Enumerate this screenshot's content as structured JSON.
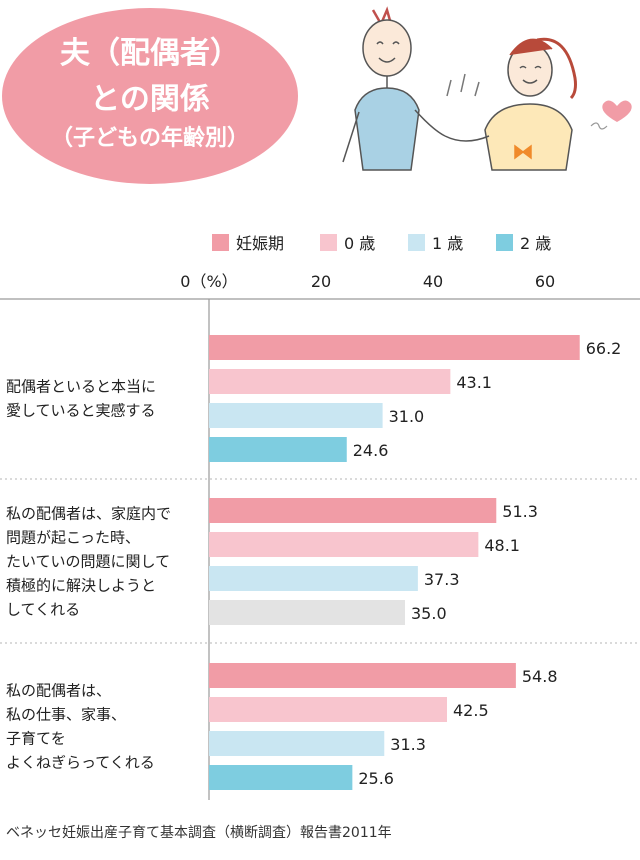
{
  "header": {
    "title_line1": "夫（配偶者）",
    "title_line2": "との関係",
    "title_line3": "（子どもの年齢別）"
  },
  "chart_data": {
    "type": "bar",
    "orientation": "horizontal",
    "axis_labels": [
      "0（%）",
      "20",
      "40",
      "60"
    ],
    "xlim": [
      0,
      70
    ],
    "ticks": [
      0,
      20,
      40,
      60
    ],
    "legend_position": "top",
    "grid": false,
    "series": [
      {
        "name": "妊娠期",
        "color": "#f19ca6",
        "values": [
          66.2,
          51.3,
          54.8
        ]
      },
      {
        "name": "0 歳",
        "color": "#f8c5ce",
        "values": [
          43.1,
          48.1,
          42.5
        ]
      },
      {
        "name": "1 歳",
        "color": "#c9e6f2",
        "values": [
          31.0,
          37.3,
          31.3
        ]
      },
      {
        "name": "2 歳",
        "color": "#7ecde0",
        "values": [
          24.6,
          35.0,
          25.6
        ]
      }
    ],
    "value_labels": [
      [
        "66.2",
        "43.1",
        "31.0",
        "24.6"
      ],
      [
        "51.3",
        "48.1",
        "37.3",
        "35.0"
      ],
      [
        "54.8",
        "42.5",
        "31.3",
        "25.6"
      ]
    ],
    "override_colors": [
      [
        null,
        null,
        null,
        null
      ],
      [
        null,
        null,
        null,
        "#e3e3e3"
      ],
      [
        null,
        null,
        null,
        null
      ]
    ],
    "categories": [
      [
        "配偶者といると本当に",
        "愛していると実感する"
      ],
      [
        "私の配偶者は、家庭内で",
        "問題が起こった時、",
        "たいていの問題に関して",
        "積極的に解決しようと",
        "してくれる"
      ],
      [
        "私の配偶者は、",
        "私の仕事、家事、",
        "子育てを",
        "よくねぎらってくれる"
      ]
    ]
  },
  "footer": {
    "source": "ベネッセ妊娠出産子育て基本調査（横断調査）報告書2011年"
  }
}
